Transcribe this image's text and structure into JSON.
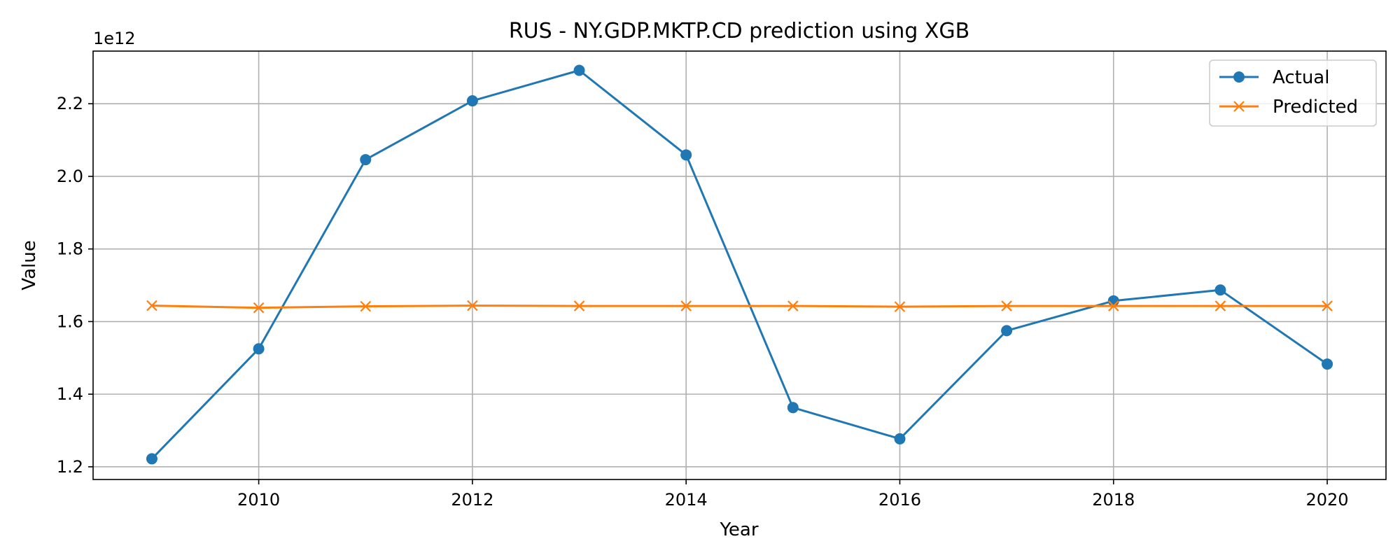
{
  "chart_data": {
    "type": "line",
    "title": "RUS - NY.GDP.MKTP.CD prediction using XGB",
    "xlabel": "Year",
    "ylabel": "Value",
    "y_scale_note": "1e12",
    "x": [
      2009,
      2010,
      2011,
      2012,
      2013,
      2014,
      2015,
      2016,
      2017,
      2018,
      2019,
      2020
    ],
    "xlim": [
      2008.45,
      2020.55
    ],
    "ylim": [
      1.165,
      2.345
    ],
    "x_ticks": [
      2010,
      2012,
      2014,
      2016,
      2018,
      2020
    ],
    "x_tick_labels": [
      "2010",
      "2012",
      "2014",
      "2016",
      "2018",
      "2020"
    ],
    "y_ticks": [
      1.2,
      1.4,
      1.6,
      1.8,
      2.0,
      2.2
    ],
    "y_tick_labels": [
      "1.2",
      "1.4",
      "1.6",
      "1.8",
      "2.0",
      "2.2"
    ],
    "grid": true,
    "legend_position": "top-right",
    "series": [
      {
        "name": "Actual",
        "color": "#1f77b4",
        "marker": "circle",
        "values": [
          1.222,
          1.525,
          2.046,
          2.208,
          2.292,
          2.059,
          1.363,
          1.277,
          1.575,
          1.657,
          1.687,
          1.483
        ]
      },
      {
        "name": "Predicted",
        "color": "#ff7f0e",
        "marker": "x",
        "values": [
          1.644,
          1.638,
          1.642,
          1.644,
          1.643,
          1.643,
          1.643,
          1.641,
          1.643,
          1.643,
          1.643,
          1.643
        ]
      }
    ]
  }
}
